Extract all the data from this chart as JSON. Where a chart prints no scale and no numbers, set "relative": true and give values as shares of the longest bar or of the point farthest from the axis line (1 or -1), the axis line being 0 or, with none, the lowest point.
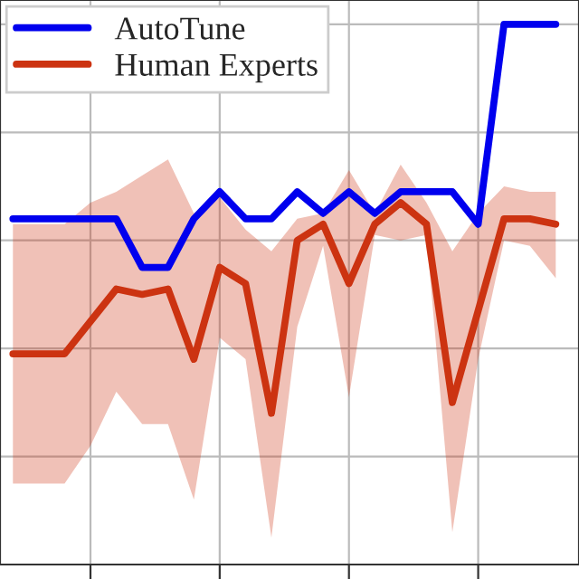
{
  "chart_data": {
    "type": "line",
    "relative": true,
    "categories": [
      null,
      null,
      null,
      null,
      null,
      null,
      null,
      null,
      null,
      null,
      null,
      null,
      null,
      null,
      null,
      null,
      null,
      null,
      null,
      null,
      null,
      null
    ],
    "series": [
      {
        "name": "AutoTune",
        "color": "#0000ee",
        "values": [
          0.64,
          0.64,
          0.64,
          0.64,
          0.64,
          0.55,
          0.55,
          0.64,
          0.69,
          0.64,
          0.64,
          0.69,
          0.65,
          0.69,
          0.65,
          0.69,
          0.69,
          0.69,
          0.63,
          1.0,
          1.0,
          1.0
        ]
      },
      {
        "name": "Human Experts",
        "color": "#cc3311",
        "values": [
          0.39,
          0.39,
          0.39,
          0.45,
          0.51,
          0.5,
          0.51,
          0.38,
          0.55,
          0.52,
          0.28,
          0.6,
          0.63,
          0.52,
          0.63,
          0.67,
          0.63,
          0.3,
          0.47,
          0.64,
          0.64,
          0.63
        ],
        "lower": [
          0.15,
          0.15,
          0.15,
          0.22,
          0.32,
          0.26,
          0.26,
          0.12,
          0.42,
          0.38,
          0.05,
          0.44,
          0.59,
          0.31,
          0.61,
          0.6,
          0.61,
          0.06,
          0.38,
          0.6,
          0.59,
          0.53
        ],
        "upper": [
          0.63,
          0.63,
          0.63,
          0.67,
          0.69,
          0.72,
          0.75,
          0.65,
          0.68,
          0.62,
          0.58,
          0.64,
          0.65,
          0.73,
          0.65,
          0.74,
          0.67,
          0.58,
          0.65,
          0.7,
          0.69,
          0.69
        ]
      }
    ],
    "grid": true,
    "legend": "top left",
    "line_style": "solid"
  }
}
